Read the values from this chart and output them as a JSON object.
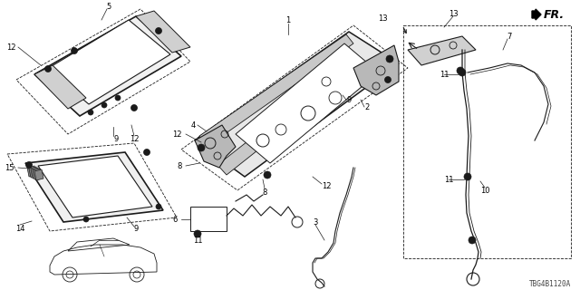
{
  "background_color": "#ffffff",
  "diagram_code": "TBG4B1120A",
  "fr_label": "FR.",
  "figsize": [
    6.4,
    3.2
  ],
  "dpi": 100,
  "line_color": "#1a1a1a",
  "label_fontsize": 6.0,
  "diagram_fontsize": 5.5,
  "fr_fontsize": 9
}
